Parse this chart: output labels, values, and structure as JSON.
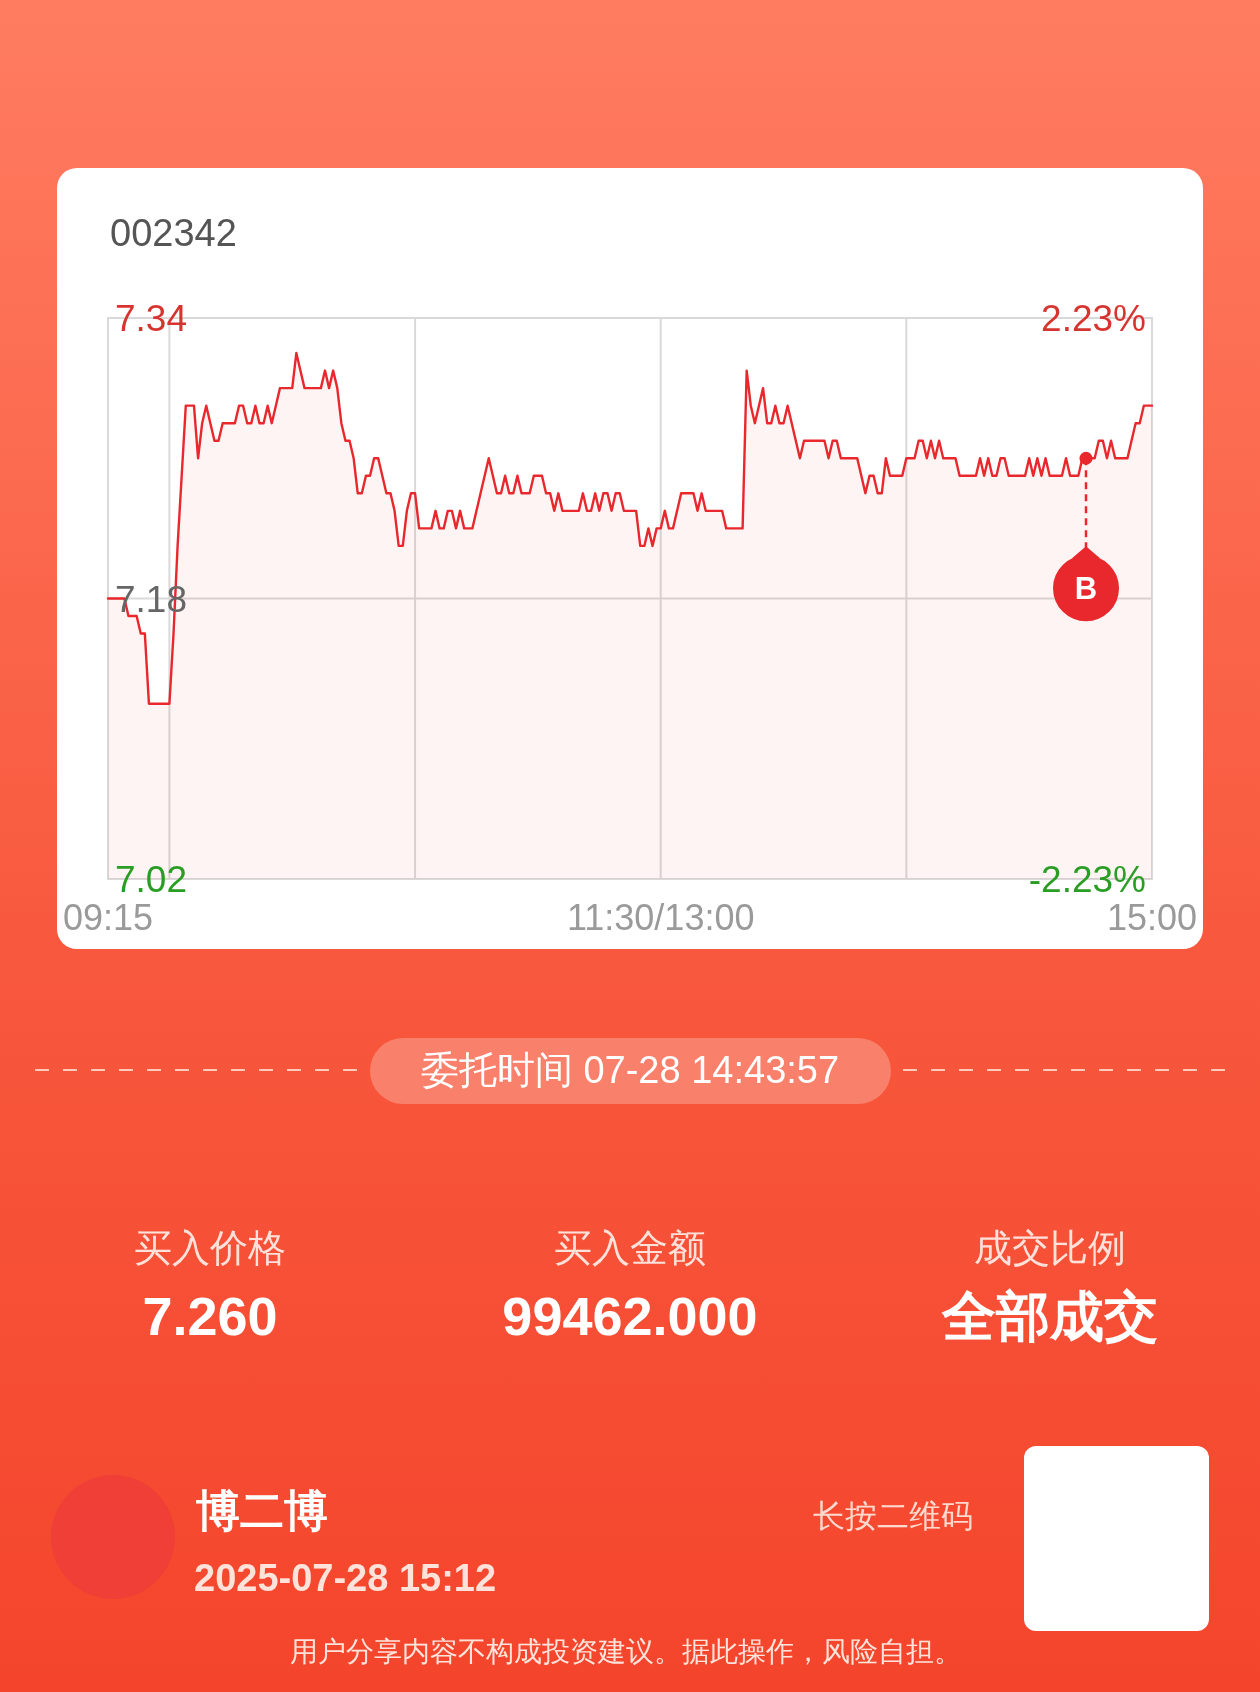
{
  "chart_data": {
    "type": "area",
    "title": "002342",
    "color": "#e8282c",
    "categories": [
      "09:15",
      null,
      null,
      null,
      null,
      null,
      null,
      null,
      null,
      null,
      null,
      null,
      null,
      null,
      null,
      null,
      null,
      null,
      null,
      null,
      null,
      null,
      null,
      null,
      null,
      null,
      null,
      null,
      null,
      null,
      null,
      null,
      null,
      null,
      null,
      null,
      null,
      null,
      null,
      null,
      null,
      null,
      null,
      null,
      null,
      null,
      null,
      null,
      null,
      null,
      null,
      null,
      null,
      null,
      null,
      null,
      null,
      null,
      null,
      null,
      null,
      null,
      null,
      null,
      null,
      null,
      null,
      null,
      null,
      null,
      null,
      null,
      null,
      null,
      null,
      null,
      null,
      null,
      null,
      null,
      null,
      null,
      null,
      null,
      null,
      null,
      null,
      null,
      null,
      null,
      null,
      null,
      null,
      null,
      null,
      null,
      null,
      null,
      null,
      null,
      null,
      null,
      null,
      null,
      null,
      null,
      null,
      null,
      null,
      null,
      null,
      null,
      null,
      null,
      null,
      null,
      null,
      null,
      null,
      null,
      null,
      null,
      null,
      null,
      null,
      null,
      null,
      null,
      null,
      null,
      null,
      null,
      null,
      null,
      null,
      "11:30/13:00",
      null,
      null,
      null,
      null,
      null,
      null,
      null,
      null,
      null,
      null,
      null,
      null,
      null,
      null,
      null,
      null,
      null,
      null,
      null,
      null,
      null,
      null,
      null,
      null,
      null,
      null,
      null,
      null,
      null,
      null,
      null,
      null,
      null,
      null,
      null,
      null,
      null,
      null,
      null,
      null,
      null,
      null,
      null,
      null,
      null,
      null,
      null,
      null,
      null,
      null,
      null,
      null,
      null,
      null,
      null,
      null,
      null,
      null,
      null,
      null,
      null,
      null,
      null,
      null,
      null,
      null,
      null,
      null,
      null,
      null,
      null,
      null,
      null,
      null,
      null,
      null,
      null,
      null,
      null,
      null,
      null,
      null,
      null,
      null,
      null,
      null,
      null,
      null,
      null,
      null,
      null,
      null,
      null,
      null,
      null,
      null,
      null,
      null,
      null,
      null,
      null,
      null,
      null,
      null,
      null,
      null,
      null,
      null,
      null,
      null,
      null,
      null,
      null,
      null,
      null,
      null,
      null,
      null,
      null,
      "15:00"
    ],
    "values": [
      7.18,
      7.18,
      7.18,
      7.18,
      7.18,
      7.17,
      7.17,
      7.17,
      7.16,
      7.16,
      7.12,
      7.12,
      7.12,
      7.12,
      7.12,
      7.12,
      7.16,
      7.21,
      7.25,
      7.29,
      7.29,
      7.29,
      7.26,
      7.28,
      7.29,
      7.28,
      7.27,
      7.27,
      7.28,
      7.28,
      7.28,
      7.28,
      7.29,
      7.29,
      7.28,
      7.28,
      7.29,
      7.28,
      7.28,
      7.29,
      7.28,
      7.29,
      7.3,
      7.3,
      7.3,
      7.3,
      7.32,
      7.31,
      7.3,
      7.3,
      7.3,
      7.3,
      7.3,
      7.31,
      7.3,
      7.31,
      7.3,
      7.28,
      7.27,
      7.27,
      7.26,
      7.24,
      7.24,
      7.25,
      7.25,
      7.26,
      7.26,
      7.25,
      7.24,
      7.24,
      7.23,
      7.21,
      7.21,
      7.23,
      7.24,
      7.24,
      7.22,
      7.22,
      7.22,
      7.22,
      7.23,
      7.22,
      7.22,
      7.23,
      7.23,
      7.22,
      7.23,
      7.22,
      7.22,
      7.22,
      7.23,
      7.24,
      7.25,
      7.26,
      7.25,
      7.24,
      7.24,
      7.25,
      7.24,
      7.24,
      7.25,
      7.24,
      7.24,
      7.24,
      7.25,
      7.25,
      7.25,
      7.24,
      7.24,
      7.23,
      7.24,
      7.23,
      7.23,
      7.23,
      7.23,
      7.23,
      7.24,
      7.23,
      7.23,
      7.24,
      7.23,
      7.24,
      7.24,
      7.23,
      7.24,
      7.24,
      7.23,
      7.23,
      7.23,
      7.23,
      7.21,
      7.21,
      7.22,
      7.21,
      7.22,
      7.22,
      7.23,
      7.22,
      7.22,
      7.23,
      7.24,
      7.24,
      7.24,
      7.24,
      7.23,
      7.24,
      7.23,
      7.23,
      7.23,
      7.23,
      7.23,
      7.22,
      7.22,
      7.22,
      7.22,
      7.22,
      7.31,
      7.29,
      7.28,
      7.29,
      7.3,
      7.28,
      7.28,
      7.29,
      7.28,
      7.28,
      7.29,
      7.28,
      7.27,
      7.26,
      7.27,
      7.27,
      7.27,
      7.27,
      7.27,
      7.27,
      7.26,
      7.27,
      7.27,
      7.26,
      7.26,
      7.26,
      7.26,
      7.26,
      7.25,
      7.24,
      7.25,
      7.25,
      7.24,
      7.24,
      7.26,
      7.25,
      7.25,
      7.25,
      7.25,
      7.26,
      7.26,
      7.26,
      7.27,
      7.27,
      7.26,
      7.27,
      7.26,
      7.27,
      7.26,
      7.26,
      7.26,
      7.26,
      7.25,
      7.25,
      7.25,
      7.25,
      7.25,
      7.26,
      7.25,
      7.26,
      7.25,
      7.25,
      7.26,
      7.26,
      7.25,
      7.25,
      7.25,
      7.25,
      7.25,
      7.26,
      7.25,
      7.26,
      7.25,
      7.26,
      7.25,
      7.25,
      7.25,
      7.25,
      7.26,
      7.25,
      7.25,
      7.25,
      7.26,
      7.26,
      7.26,
      7.26,
      7.27,
      7.27,
      7.26,
      7.27,
      7.26,
      7.26,
      7.26,
      7.26,
      7.27,
      7.28,
      7.28,
      7.29,
      7.29,
      7.29
    ],
    "ylim": [
      7.02,
      7.34
    ],
    "yticks": [
      7.02,
      7.18,
      7.34
    ],
    "y2lim": [
      -2.23,
      2.23
    ],
    "y2ticks": [
      {
        "value": -2.23,
        "label": "-2.23%"
      },
      {
        "value": 2.23,
        "label": "2.23%"
      }
    ],
    "grid": true,
    "annotations": [
      {
        "text": "B",
        "y": 7.26
      },
      "委托时间 07-28 14:43:57",
      "买入价格",
      "7.260",
      "买入金额",
      "99462.000",
      "成交比例",
      "全部成交",
      "博二博",
      "2025-07-28 15:12",
      "长按二维码",
      "用户分享内容不构成投资建议。据此操作，风险自担。"
    ]
  }
}
